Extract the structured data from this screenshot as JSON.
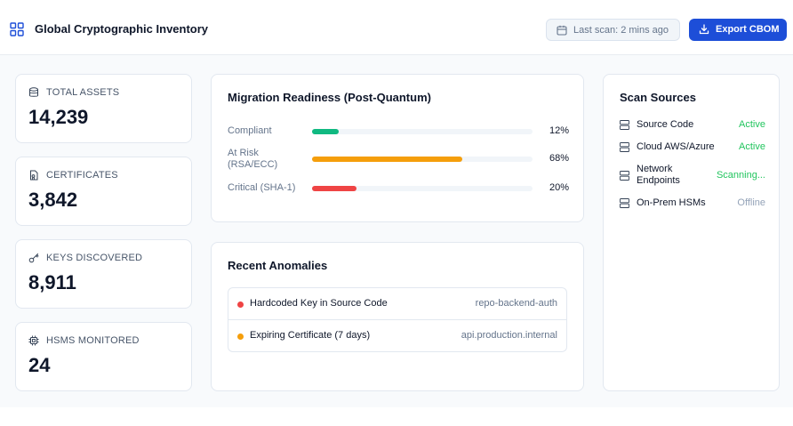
{
  "header": {
    "title": "Global Cryptographic Inventory",
    "last_scan": "Last scan: 2 mins ago",
    "export_label": "Export CBOM"
  },
  "stats": [
    {
      "label": "TOTAL ASSETS",
      "value": "14,239",
      "icon": "database-icon"
    },
    {
      "label": "CERTIFICATES",
      "value": "3,842",
      "icon": "certificate-icon"
    },
    {
      "label": "KEYS DISCOVERED",
      "value": "8,911",
      "icon": "key-icon"
    },
    {
      "label": "HSMS MONITORED",
      "value": "24",
      "icon": "chip-icon"
    }
  ],
  "migration": {
    "title": "Migration Readiness (Post-Quantum)",
    "rows": [
      {
        "label": "Compliant",
        "pct_label": "12%",
        "value": 12,
        "color": "#10b981"
      },
      {
        "label": "At Risk\n(RSA/ECC)",
        "pct_label": "68%",
        "value": 68,
        "color": "#f59e0b"
      },
      {
        "label": "Critical (SHA-1)",
        "pct_label": "20%",
        "value": 20,
        "color": "#ef4444"
      }
    ]
  },
  "anomalies": {
    "title": "Recent Anomalies",
    "items": [
      {
        "title": "Hardcoded Key in Source Code",
        "source": "repo-backend-auth",
        "color": "#ef4444"
      },
      {
        "title": "Expiring Certificate (7 days)",
        "source": "api.production.internal",
        "color": "#f59e0b"
      }
    ]
  },
  "sources": {
    "title": "Scan Sources",
    "items": [
      {
        "name": "Source Code",
        "status": "Active",
        "status_color": "#22c55e"
      },
      {
        "name": "Cloud AWS/Azure",
        "status": "Active",
        "status_color": "#22c55e"
      },
      {
        "name": "Network\nEndpoints",
        "status": "Scanning...",
        "status_color": "#22c55e"
      },
      {
        "name": "On-Prem HSMs",
        "status": "Offline",
        "status_color": "#94a3b8"
      }
    ]
  },
  "colors": {
    "accent": "#1d4ed8",
    "success": "#10b981",
    "warning": "#f59e0b",
    "danger": "#ef4444"
  }
}
